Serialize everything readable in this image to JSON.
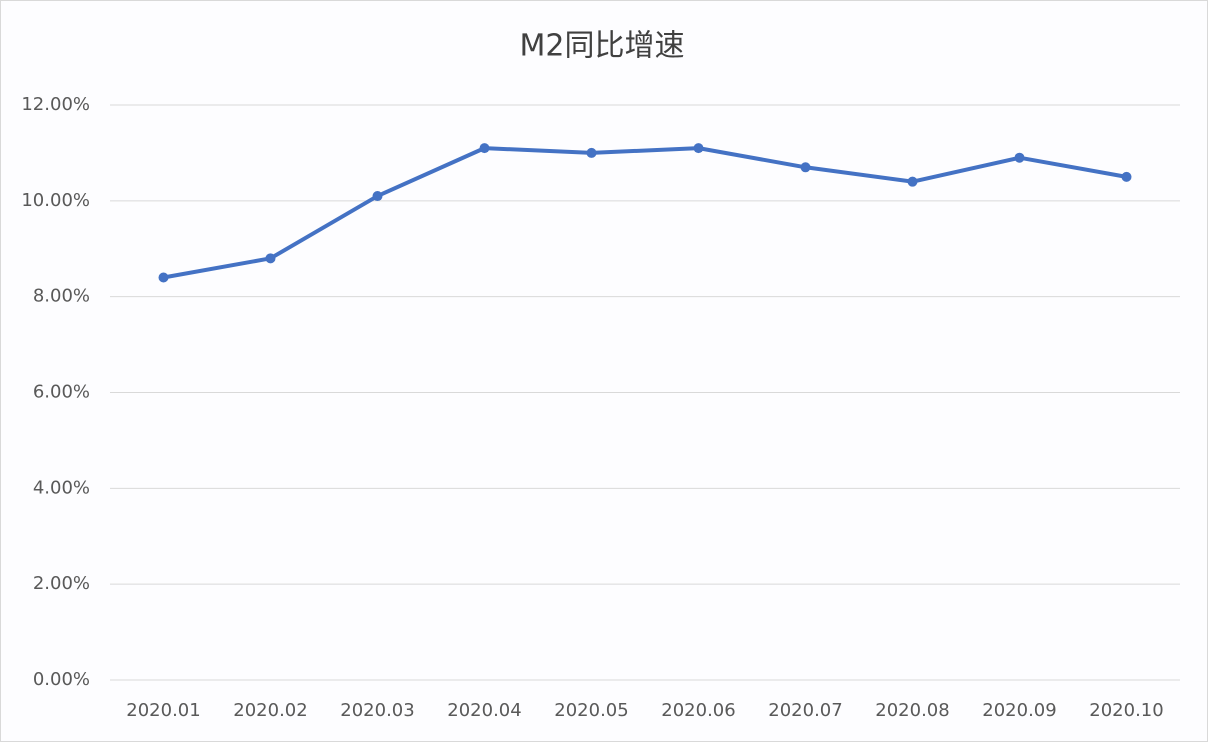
{
  "chart_data": {
    "type": "line",
    "title": "M2同比增速",
    "categories": [
      "2020.01",
      "2020.02",
      "2020.03",
      "2020.04",
      "2020.05",
      "2020.06",
      "2020.07",
      "2020.08",
      "2020.09",
      "2020.10"
    ],
    "series": [
      {
        "color": "#4472c4",
        "values": [
          8.4,
          8.8,
          10.1,
          11.1,
          11.0,
          11.1,
          10.7,
          10.4,
          10.9,
          10.5
        ]
      }
    ],
    "ylim": [
      0,
      12
    ],
    "yticks": [
      {
        "value": 0,
        "label": "0.00%"
      },
      {
        "value": 2,
        "label": "2.00%"
      },
      {
        "value": 4,
        "label": "4.00%"
      },
      {
        "value": 6,
        "label": "6.00%"
      },
      {
        "value": 8,
        "label": "8.00%"
      },
      {
        "value": 10,
        "label": "10.00%"
      },
      {
        "value": 12,
        "label": "12.00%"
      }
    ],
    "grid": true
  }
}
